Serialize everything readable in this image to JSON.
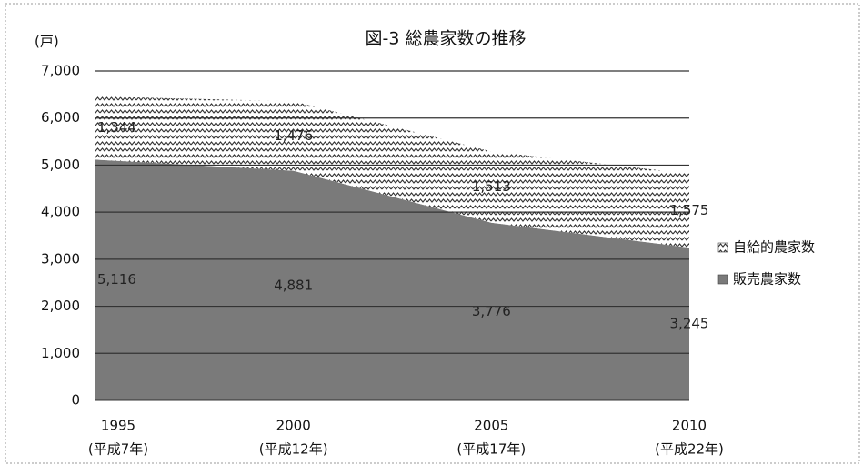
{
  "chart_data": {
    "type": "stacked_area",
    "title": "図-3 総農家数の推移",
    "y_label": "(戸)",
    "categories": [
      [
        "1995",
        "(平成7年)"
      ],
      [
        "2000",
        "(平成12年)"
      ],
      [
        "2005",
        "(平成17年)"
      ],
      [
        "2010",
        "(平成22年)"
      ]
    ],
    "series": [
      {
        "name": "販売農家数",
        "color": "#7a7a7a",
        "values": [
          5116,
          4881,
          3776,
          3245
        ],
        "value_labels": [
          "5,116",
          "4,881",
          "3,776",
          "3,245"
        ]
      },
      {
        "name": "自給的農家数",
        "color": "#ffffff",
        "values": [
          1344,
          1476,
          1513,
          1575
        ],
        "value_labels": [
          "1,344",
          "1,476",
          "1,513",
          "1,575"
        ]
      }
    ],
    "ylim": [
      0,
      7000
    ],
    "yticks": [
      0,
      {
        "value": 1000,
        "label": "1,000"
      },
      {
        "value": 2000,
        "label": "2,000"
      },
      {
        "value": 3000,
        "label": "3,000"
      },
      {
        "value": 4000,
        "label": "4,000"
      },
      {
        "value": 5000,
        "label": "5,000"
      },
      {
        "value": 6000,
        "label": "6,000"
      },
      {
        "value": 7000,
        "label": "7,000"
      }
    ],
    "grid": true,
    "legend": "right"
  }
}
